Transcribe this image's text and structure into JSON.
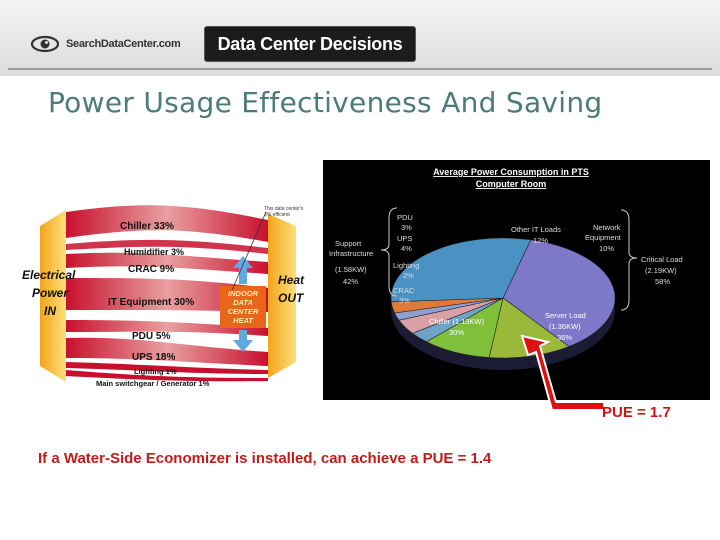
{
  "header": {
    "site_logo_text": "SearchDataCenter.com",
    "badge_text": "Data Center Decisions"
  },
  "slide": {
    "title": "Power Usage Effectiveness And Saving",
    "pue_current": "PUE = 1.7",
    "footer_note": "If a Water-Side Economizer is installed, can achieve a PUE = 1.4"
  },
  "sankey": {
    "left_label_1": "Electrical",
    "left_label_2": "Power",
    "left_label_3": "IN",
    "right_label_1": "Heat",
    "right_label_2": "OUT",
    "center_1": "INDOOR",
    "center_2": "DATA",
    "center_3": "CENTER",
    "center_4": "HEAT",
    "annotation_1": "This data center's",
    "annotation_2": "3% efficient",
    "flows": [
      "Chiller  33%",
      "Humidifier  3%",
      "CRAC  9%",
      "IT Equipment  30%",
      "PDU  5%",
      "UPS  18%",
      "Lighting  1%",
      "Main switchgear / Generator  1%"
    ]
  },
  "pie": {
    "title_1": "Average Power Consumption in PTS",
    "title_2": "Computer Room",
    "labels": {
      "pdu": [
        "PDU",
        "3%"
      ],
      "ups": [
        "UPS",
        "4%"
      ],
      "lighting": [
        "Lighting",
        "2%"
      ],
      "crac": [
        "CRAC",
        "3%"
      ],
      "support": [
        "Support",
        "Infrastructure",
        "(1.58KW)",
        "42%"
      ],
      "other_it": [
        "Other IT Loads",
        "12%"
      ],
      "network": [
        "Network",
        "Equipment",
        "10%"
      ],
      "critical": [
        "Critical Load",
        "(2.19KW)",
        "58%"
      ],
      "server": [
        "Server Load",
        "(1.36KW)",
        "36%"
      ],
      "chiller": [
        "Chiller (1.13KW)",
        "30%"
      ]
    }
  },
  "chart_data": {
    "type": "pie",
    "title": "Average Power Consumption in PTS Computer Room",
    "categories": [
      "Server Load (1.36KW)",
      "Other IT Loads",
      "Network Equipment",
      "PDU",
      "UPS",
      "Lighting",
      "CRAC",
      "Chiller (1.13KW)"
    ],
    "values": [
      36,
      12,
      10,
      3,
      4,
      2,
      3,
      30
    ],
    "groups": [
      {
        "name": "Support Infrastructure (1.58KW)",
        "value": 42
      },
      {
        "name": "Critical Load (2.19KW)",
        "value": 58
      }
    ],
    "colors": [
      "#7e78c8",
      "#9ab83a",
      "#7fbf3a",
      "#6fa3c8",
      "#d9a0a6",
      "#8f9fd0",
      "#e07a3a",
      "#4a92c4"
    ]
  }
}
